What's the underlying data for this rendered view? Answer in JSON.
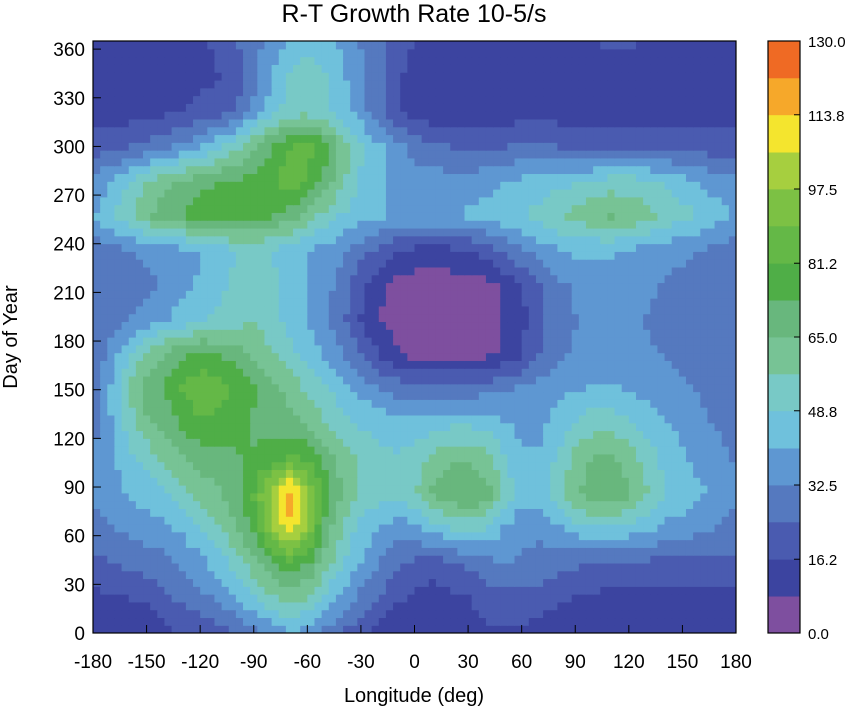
{
  "chart_data": {
    "type": "heatmap",
    "subtype": "filled-contour",
    "title": "R-T Growth Rate 10-5/s",
    "xlabel": "Longitude (deg)",
    "ylabel": "Day of Year",
    "xlim": [
      -180,
      180
    ],
    "ylim": [
      0,
      365
    ],
    "x_ticks": [
      -180,
      -150,
      -120,
      -90,
      -60,
      -30,
      0,
      30,
      60,
      90,
      120,
      150,
      180
    ],
    "y_ticks": [
      0,
      30,
      60,
      90,
      120,
      150,
      180,
      210,
      240,
      270,
      300,
      330,
      360
    ],
    "colorbar": {
      "tick_labels": [
        "130.0",
        "113.8",
        "97.5",
        "81.2",
        "65.0",
        "48.8",
        "32.5",
        "16.2",
        "0.0"
      ],
      "tick_values": [
        130.0,
        113.8,
        97.5,
        81.2,
        65.0,
        48.8,
        32.5,
        16.2,
        0.0
      ],
      "levels": [
        0,
        8.1,
        16.2,
        24.4,
        32.5,
        40.6,
        48.8,
        56.9,
        65.0,
        73.1,
        81.2,
        89.4,
        97.5,
        105.6,
        113.8,
        121.9,
        130.0
      ],
      "colors": [
        "#7e4f9f",
        "#3c44a0",
        "#4a5bb0",
        "#5579bf",
        "#5e97d2",
        "#6fc1dc",
        "#78c9c6",
        "#77c395",
        "#68b77d",
        "#4fae47",
        "#64b847",
        "#7cc144",
        "#a6cf3f",
        "#f4e52e",
        "#f6a82a",
        "#ef6a24",
        "#e1251f"
      ]
    },
    "grid": false,
    "z": [
      [
        8,
        8,
        8,
        9,
        14,
        18,
        18,
        20,
        25,
        30,
        35,
        40,
        38,
        30,
        24,
        18,
        12,
        9,
        8,
        8,
        10,
        12,
        14,
        15,
        15,
        12,
        10,
        8,
        8,
        8,
        8,
        8,
        8,
        8,
        8,
        8,
        8
      ],
      [
        14,
        15,
        16,
        18,
        22,
        26,
        30,
        34,
        40,
        48,
        55,
        60,
        56,
        46,
        38,
        30,
        24,
        18,
        14,
        12,
        14,
        16,
        20,
        22,
        22,
        20,
        18,
        16,
        14,
        14,
        14,
        14,
        14,
        14,
        14,
        14,
        14
      ],
      [
        22,
        24,
        26,
        28,
        30,
        34,
        38,
        44,
        52,
        62,
        72,
        78,
        74,
        60,
        50,
        40,
        32,
        26,
        22,
        20,
        22,
        26,
        30,
        32,
        32,
        30,
        28,
        26,
        24,
        22,
        22,
        22,
        22,
        22,
        22,
        22,
        22
      ],
      [
        30,
        32,
        34,
        36,
        38,
        42,
        48,
        56,
        64,
        75,
        95,
        112,
        95,
        70,
        56,
        46,
        40,
        36,
        38,
        44,
        48,
        50,
        48,
        40,
        34,
        34,
        38,
        44,
        48,
        48,
        46,
        42,
        38,
        36,
        34,
        32,
        30
      ],
      [
        34,
        38,
        42,
        44,
        48,
        54,
        60,
        64,
        70,
        82,
        102,
        118,
        100,
        78,
        64,
        56,
        52,
        50,
        56,
        66,
        72,
        74,
        70,
        56,
        44,
        44,
        54,
        64,
        70,
        70,
        66,
        58,
        50,
        46,
        42,
        38,
        34
      ],
      [
        32,
        38,
        46,
        52,
        58,
        64,
        68,
        70,
        72,
        74,
        78,
        84,
        80,
        70,
        62,
        56,
        52,
        50,
        52,
        60,
        64,
        64,
        60,
        50,
        42,
        42,
        50,
        60,
        66,
        66,
        62,
        54,
        46,
        42,
        38,
        34,
        32
      ],
      [
        30,
        40,
        52,
        62,
        68,
        74,
        80,
        78,
        76,
        72,
        70,
        68,
        64,
        58,
        52,
        48,
        46,
        44,
        44,
        46,
        48,
        48,
        46,
        42,
        38,
        38,
        44,
        50,
        54,
        54,
        50,
        46,
        42,
        38,
        34,
        32,
        30
      ],
      [
        28,
        42,
        58,
        70,
        74,
        82,
        88,
        84,
        80,
        74,
        68,
        62,
        56,
        50,
        44,
        38,
        34,
        30,
        28,
        28,
        28,
        28,
        30,
        32,
        34,
        36,
        38,
        40,
        42,
        42,
        40,
        38,
        36,
        34,
        32,
        30,
        28
      ],
      [
        26,
        36,
        48,
        58,
        66,
        72,
        76,
        74,
        70,
        64,
        58,
        52,
        46,
        40,
        32,
        24,
        16,
        10,
        6,
        5,
        5,
        5,
        6,
        10,
        16,
        24,
        30,
        34,
        36,
        36,
        36,
        34,
        32,
        30,
        28,
        26,
        26
      ],
      [
        26,
        28,
        32,
        36,
        40,
        44,
        48,
        50,
        54,
        56,
        52,
        46,
        40,
        34,
        26,
        16,
        8,
        4,
        3,
        3,
        3,
        3,
        4,
        8,
        14,
        22,
        28,
        32,
        34,
        34,
        34,
        32,
        30,
        28,
        28,
        26,
        26
      ],
      [
        24,
        26,
        28,
        30,
        34,
        38,
        42,
        46,
        52,
        56,
        52,
        46,
        40,
        36,
        28,
        18,
        10,
        5,
        4,
        4,
        4,
        4,
        5,
        10,
        16,
        24,
        30,
        34,
        36,
        36,
        36,
        34,
        32,
        30,
        28,
        26,
        24
      ],
      [
        28,
        30,
        32,
        34,
        36,
        38,
        40,
        44,
        48,
        50,
        48,
        44,
        40,
        38,
        34,
        28,
        22,
        16,
        14,
        14,
        14,
        16,
        20,
        26,
        32,
        36,
        40,
        42,
        42,
        42,
        40,
        38,
        36,
        34,
        32,
        30,
        28
      ],
      [
        40,
        48,
        56,
        64,
        70,
        74,
        78,
        80,
        80,
        78,
        74,
        70,
        62,
        54,
        48,
        44,
        42,
        40,
        40,
        40,
        40,
        42,
        44,
        46,
        48,
        52,
        56,
        60,
        64,
        66,
        64,
        60,
        56,
        52,
        48,
        44,
        40
      ],
      [
        34,
        40,
        48,
        56,
        62,
        66,
        70,
        72,
        74,
        76,
        80,
        86,
        80,
        70,
        58,
        48,
        42,
        38,
        36,
        36,
        36,
        36,
        38,
        40,
        42,
        44,
        46,
        48,
        50,
        52,
        52,
        50,
        48,
        44,
        40,
        36,
        34
      ],
      [
        20,
        22,
        24,
        26,
        30,
        34,
        40,
        46,
        54,
        64,
        72,
        80,
        84,
        76,
        62,
        50,
        42,
        36,
        30,
        26,
        24,
        22,
        22,
        24,
        26,
        26,
        24,
        22,
        20,
        20,
        20,
        20,
        20,
        20,
        20,
        20,
        20
      ],
      [
        12,
        12,
        12,
        12,
        14,
        16,
        18,
        20,
        24,
        36,
        46,
        52,
        54,
        50,
        44,
        36,
        26,
        18,
        12,
        10,
        10,
        10,
        10,
        10,
        12,
        12,
        12,
        12,
        12,
        12,
        12,
        12,
        12,
        12,
        12,
        12,
        12
      ],
      [
        10,
        10,
        10,
        10,
        10,
        12,
        14,
        16,
        20,
        28,
        40,
        50,
        54,
        50,
        42,
        34,
        26,
        18,
        12,
        10,
        10,
        10,
        10,
        10,
        10,
        10,
        10,
        10,
        10,
        10,
        10,
        10,
        10,
        10,
        10,
        10,
        10
      ],
      [
        14,
        12,
        10,
        10,
        10,
        12,
        14,
        18,
        24,
        30,
        36,
        42,
        46,
        44,
        38,
        32,
        26,
        20,
        16,
        14,
        12,
        12,
        12,
        12,
        12,
        12,
        12,
        14,
        16,
        18,
        18,
        16,
        14,
        14,
        14,
        14,
        14
      ]
    ]
  }
}
